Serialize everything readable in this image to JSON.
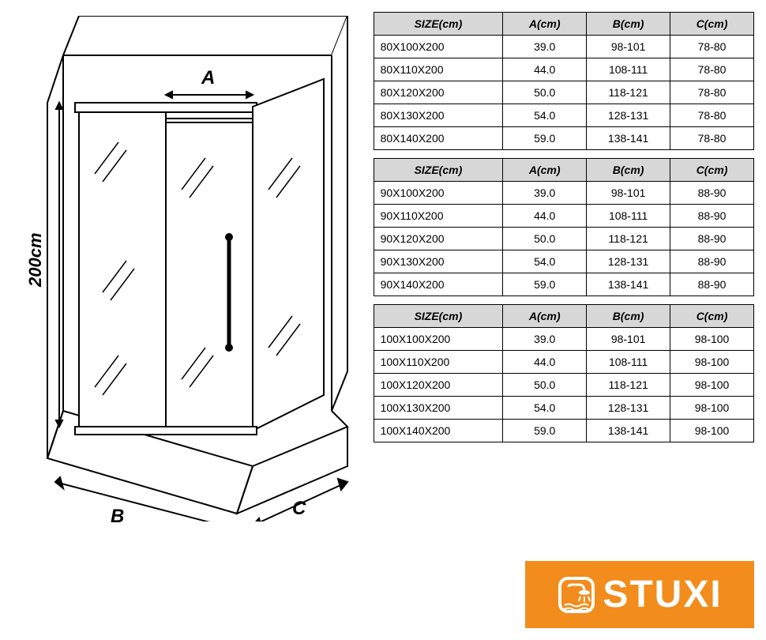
{
  "diagram": {
    "height_label": "200cm",
    "label_A": "A",
    "label_B": "B",
    "label_C": "C",
    "stroke": "#000000",
    "wall_stroke_width": 2,
    "glass_line_stroke": "#000000"
  },
  "tables": [
    {
      "headers": [
        "SIZE(cm)",
        "A(cm)",
        "B(cm)",
        "C(cm)"
      ],
      "rows": [
        [
          "80X100X200",
          "39.0",
          "98-101",
          "78-80"
        ],
        [
          "80X110X200",
          "44.0",
          "108-111",
          "78-80"
        ],
        [
          "80X120X200",
          "50.0",
          "118-121",
          "78-80"
        ],
        [
          "80X130X200",
          "54.0",
          "128-131",
          "78-80"
        ],
        [
          "80X140X200",
          "59.0",
          "138-141",
          "78-80"
        ]
      ]
    },
    {
      "headers": [
        "SIZE(cm)",
        "A(cm)",
        "B(cm)",
        "C(cm)"
      ],
      "rows": [
        [
          "90X100X200",
          "39.0",
          "98-101",
          "88-90"
        ],
        [
          "90X110X200",
          "44.0",
          "108-111",
          "88-90"
        ],
        [
          "90X120X200",
          "50.0",
          "118-121",
          "88-90"
        ],
        [
          "90X130X200",
          "54.0",
          "128-131",
          "88-90"
        ],
        [
          "90X140X200",
          "59.0",
          "138-141",
          "88-90"
        ]
      ]
    },
    {
      "headers": [
        "SIZE(cm)",
        "A(cm)",
        "B(cm)",
        "C(cm)"
      ],
      "rows": [
        [
          "100X100X200",
          "39.0",
          "98-101",
          "98-100"
        ],
        [
          "100X110X200",
          "44.0",
          "108-111",
          "98-100"
        ],
        [
          "100X120X200",
          "50.0",
          "118-121",
          "98-100"
        ],
        [
          "100X130X200",
          "54.0",
          "128-131",
          "98-100"
        ],
        [
          "100X140X200",
          "59.0",
          "138-141",
          "98-100"
        ]
      ]
    }
  ],
  "logo": {
    "text": "STUXI",
    "background": "#f28c1c",
    "text_color": "#ffffff"
  },
  "table_style": {
    "header_bg": "#d7d7d7",
    "border_color": "#000000",
    "font_size": 14
  }
}
